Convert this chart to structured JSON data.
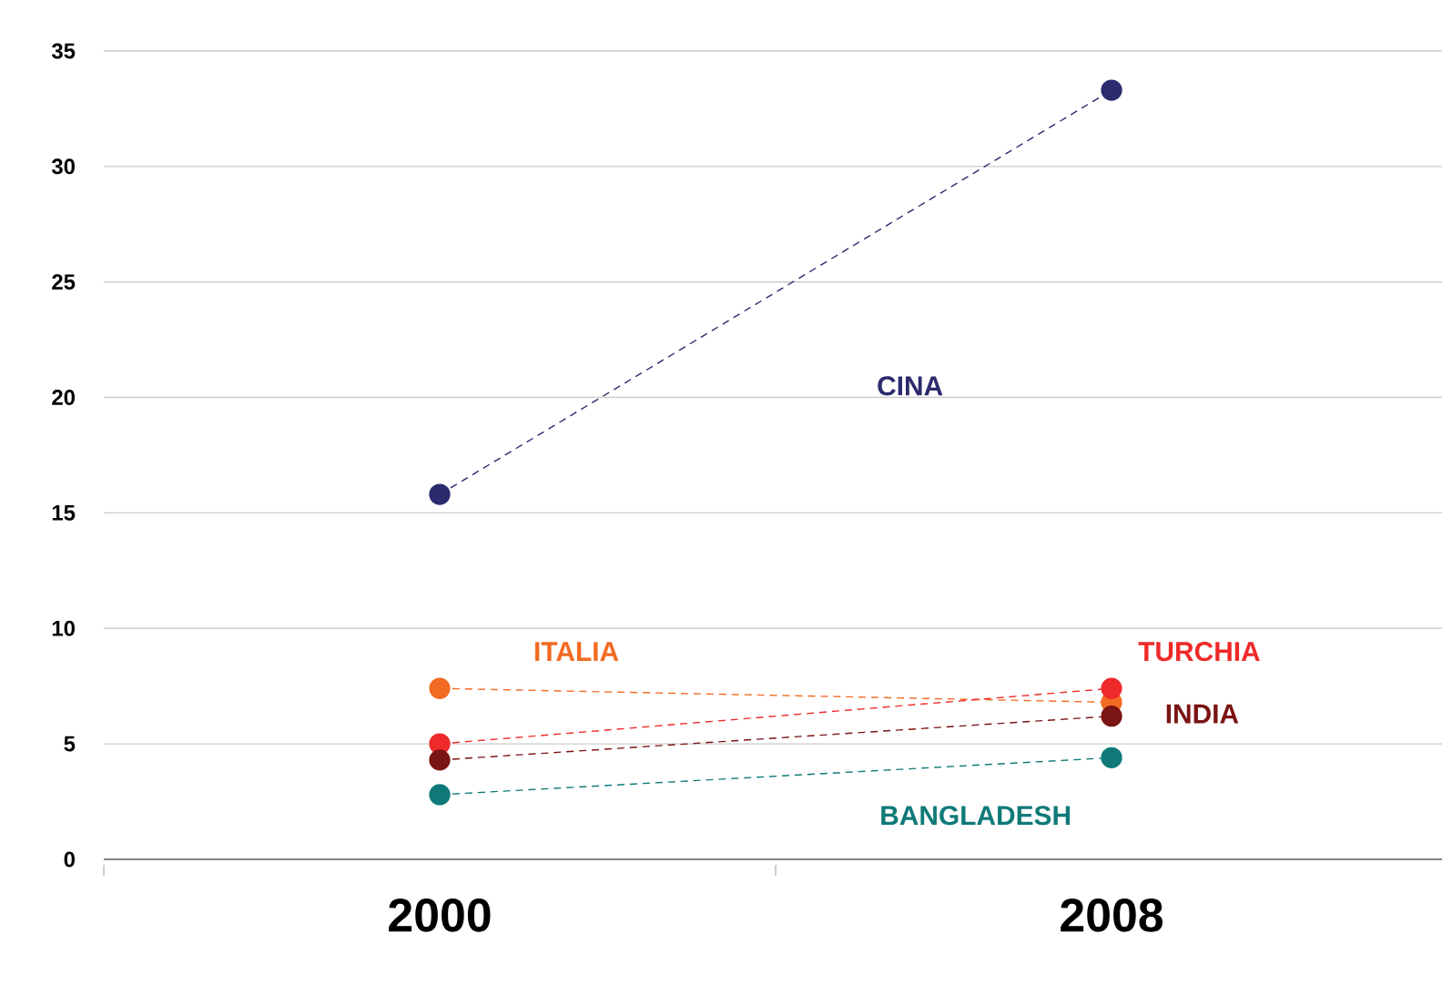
{
  "chart_data": {
    "type": "line",
    "categories": [
      "2000",
      "2008"
    ],
    "ylim": [
      0,
      35
    ],
    "yticks": [
      0,
      5,
      10,
      15,
      20,
      25,
      30,
      35
    ],
    "grid": "y",
    "marker": "circle",
    "line_style": "dashed",
    "legend": false,
    "series": [
      {
        "name": "CINA",
        "color": "#2b2b6e",
        "values": [
          15.8,
          33.3
        ]
      },
      {
        "name": "ITALIA",
        "color": "#f26b22",
        "values": [
          7.4,
          6.8
        ]
      },
      {
        "name": "TURCHIA",
        "color": "#ee2a2a",
        "values": [
          5.0,
          7.4
        ]
      },
      {
        "name": "INDIA",
        "color": "#7b1414",
        "values": [
          4.3,
          6.2
        ]
      },
      {
        "name": "BANGLADESH",
        "color": "#0f7a78",
        "values": [
          2.8,
          4.4
        ]
      }
    ]
  }
}
